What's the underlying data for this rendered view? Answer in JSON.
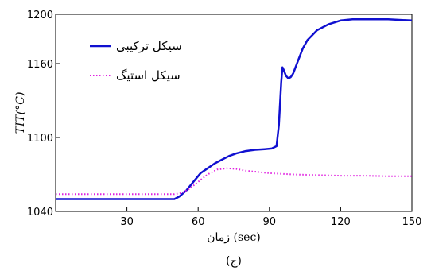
{
  "chart_data": {
    "type": "line",
    "xlabel": "زمان (sec)",
    "ylabel": "TIT(°C)",
    "caption": "(ج)",
    "xlim": [
      0,
      150
    ],
    "ylim": [
      1040,
      1200
    ],
    "x_ticks": [
      30,
      60,
      90,
      120,
      150
    ],
    "y_ticks": [
      1040,
      1100,
      1160,
      1200
    ],
    "x_tick_labels": [
      "30",
      "60",
      "90",
      "120",
      "150"
    ],
    "y_tick_labels": [
      "1040",
      "1100",
      "1160",
      "1200"
    ],
    "legend_position": "top-left",
    "grid": false,
    "series": [
      {
        "name": "سیکل ترکیبی",
        "color": "#1010d0",
        "style": "solid",
        "x": [
          0,
          50,
          52,
          55,
          58,
          61,
          64,
          67,
          70,
          73,
          76,
          80,
          84,
          88,
          91,
          93,
          94,
          95,
          95.5,
          96,
          97,
          98,
          99,
          100,
          102,
          104,
          106,
          110,
          115,
          120,
          125,
          130,
          140,
          150
        ],
        "y": [
          1050,
          1050,
          1052,
          1057,
          1064,
          1071,
          1075,
          1079,
          1082,
          1085,
          1087,
          1089,
          1090,
          1090.5,
          1091,
          1093,
          1110,
          1145,
          1157,
          1155,
          1150,
          1148,
          1149,
          1152,
          1162,
          1172,
          1179,
          1187,
          1192,
          1195,
          1196,
          1196,
          1196,
          1195
        ]
      },
      {
        "name": "سیکل استیگ",
        "color": "#e020e0",
        "style": "dotted",
        "x": [
          0,
          50,
          53,
          56,
          60,
          64,
          68,
          72,
          76,
          80,
          90,
          100,
          110,
          120,
          130,
          140,
          150
        ],
        "y": [
          1054,
          1054,
          1055,
          1058,
          1064,
          1070,
          1074,
          1075,
          1074.5,
          1073,
          1071,
          1070,
          1069.5,
          1069,
          1069,
          1068.5,
          1068.5
        ]
      }
    ]
  }
}
